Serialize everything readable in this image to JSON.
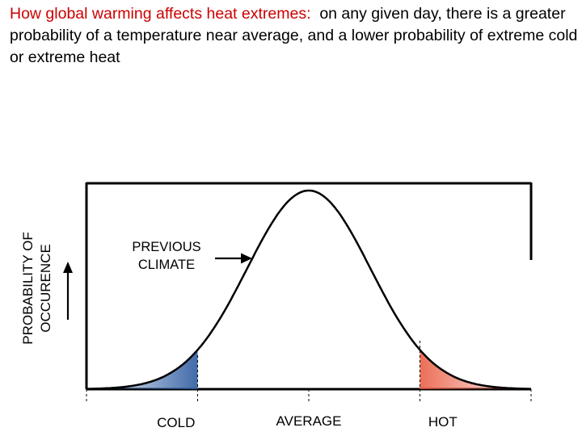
{
  "caption": {
    "lead": "How global warming affects heat extremes:",
    "rest": "on any given day, there is a greater probability of a temperature near average, and a lower probability of extreme cold or extreme heat"
  },
  "chart_data": {
    "type": "area",
    "title": "",
    "ylabel_line1": "PROBABILITY OF",
    "ylabel_line2": "OCCURENCE",
    "annotation_line1": "PREVIOUS",
    "annotation_line2": "CLIMATE",
    "categories": [
      "COLD",
      "AVERAGE",
      "HOT"
    ],
    "distribution": {
      "name": "",
      "shape": "normal",
      "mean": 0,
      "sd": 1,
      "xlim": [
        -3.6,
        3.6
      ]
    },
    "tails": [
      {
        "label": "COLD",
        "from": -3.6,
        "to": -1.8,
        "color": "#2c5aa0"
      },
      {
        "label": "HOT",
        "from": 1.8,
        "to": 3.6,
        "color": "#e8553a"
      }
    ],
    "grid": false,
    "legend": "none"
  },
  "colors": {
    "caption_lead": "#cc0000",
    "text": "#000000",
    "curve": "#000000"
  }
}
